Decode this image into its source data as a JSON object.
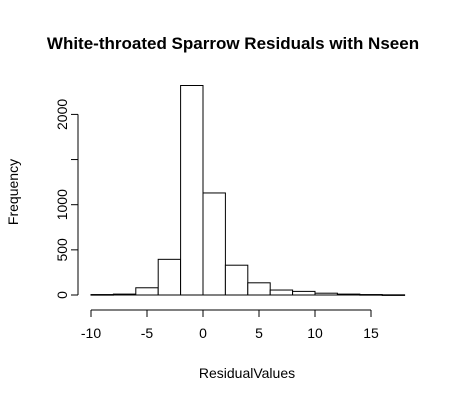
{
  "chart_data": {
    "type": "bar",
    "title": "White-throated Sparrow Residuals with Nseen",
    "xlabel": "ResidualValues",
    "ylabel": "Frequency",
    "bin_edges": [
      -10,
      -8,
      -6,
      -4,
      -2,
      0,
      2,
      4,
      6,
      8,
      10,
      12,
      14,
      16,
      18
    ],
    "values": [
      5,
      10,
      80,
      395,
      2320,
      1130,
      330,
      135,
      55,
      40,
      20,
      10,
      5,
      2
    ],
    "xlim": [
      -10,
      18
    ],
    "ylim": [
      0,
      2320
    ],
    "x_ticks": [
      -10,
      -5,
      0,
      5,
      10,
      15
    ],
    "x_tick_labels": [
      "-10",
      "-5",
      "0",
      "5",
      "10",
      "15"
    ],
    "y_ticks": [
      0,
      500,
      1000,
      1500,
      2000
    ],
    "y_tick_labels": [
      "0",
      "500",
      "1000",
      "",
      "2000"
    ]
  }
}
